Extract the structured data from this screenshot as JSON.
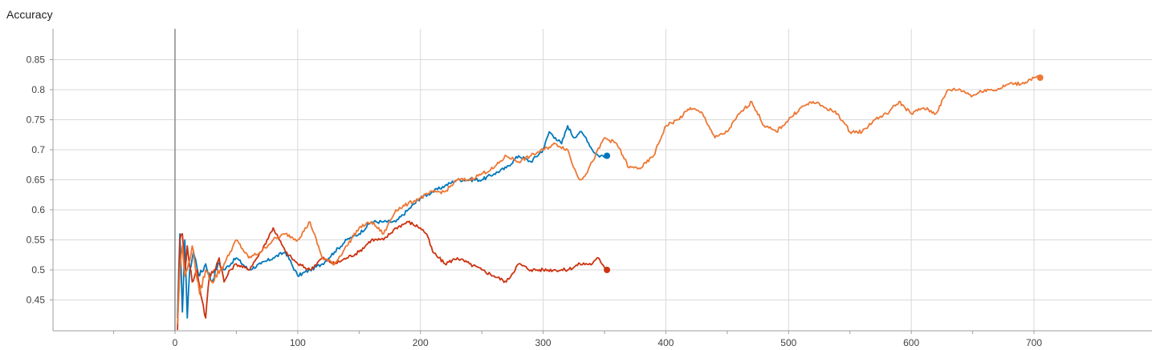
{
  "chart_data": {
    "type": "line",
    "title": "Accuracy",
    "xlabel": "",
    "ylabel": "",
    "xlim": [
      -100,
      790
    ],
    "ylim": [
      0.4,
      0.9
    ],
    "x_ticks": [
      0,
      100,
      200,
      300,
      400,
      500,
      600,
      700
    ],
    "x_tick_labels": [
      "0",
      "100",
      "200",
      "300",
      "400",
      "500",
      "600",
      "700"
    ],
    "y_ticks": [
      0.45,
      0.5,
      0.55,
      0.6,
      0.65,
      0.7,
      0.75,
      0.8,
      0.85
    ],
    "y_tick_labels": [
      "0.45",
      "0.5",
      "0.55",
      "0.6",
      "0.65",
      "0.7",
      "0.75",
      "0.8",
      "0.85"
    ],
    "grid": true,
    "legend": "none",
    "series": [
      {
        "color": "#0077bb",
        "x": [
          2,
          4,
          6,
          8,
          10,
          12,
          15,
          20,
          25,
          30,
          35,
          40,
          50,
          60,
          70,
          80,
          90,
          100,
          110,
          120,
          130,
          140,
          150,
          160,
          170,
          180,
          190,
          200,
          210,
          220,
          230,
          240,
          250,
          260,
          270,
          280,
          290,
          300,
          305,
          310,
          315,
          320,
          325,
          330,
          335,
          340,
          345,
          352
        ],
        "y": [
          0.42,
          0.56,
          0.43,
          0.55,
          0.42,
          0.5,
          0.53,
          0.49,
          0.51,
          0.48,
          0.51,
          0.5,
          0.52,
          0.5,
          0.51,
          0.52,
          0.53,
          0.49,
          0.5,
          0.51,
          0.53,
          0.55,
          0.56,
          0.58,
          0.58,
          0.58,
          0.6,
          0.62,
          0.63,
          0.64,
          0.65,
          0.65,
          0.65,
          0.66,
          0.67,
          0.69,
          0.68,
          0.7,
          0.73,
          0.72,
          0.71,
          0.74,
          0.72,
          0.73,
          0.72,
          0.7,
          0.69,
          0.69
        ]
      },
      {
        "color": "#cc3311",
        "x": [
          2,
          4,
          6,
          8,
          10,
          14,
          18,
          22,
          25,
          28,
          32,
          36,
          40,
          45,
          50,
          60,
          70,
          80,
          85,
          90,
          95,
          100,
          110,
          120,
          130,
          140,
          150,
          160,
          170,
          180,
          190,
          200,
          205,
          210,
          215,
          220,
          230,
          240,
          250,
          260,
          270,
          280,
          290,
          300,
          310,
          320,
          330,
          340,
          345,
          352
        ],
        "y": [
          0.4,
          0.55,
          0.56,
          0.5,
          0.54,
          0.48,
          0.5,
          0.45,
          0.42,
          0.49,
          0.5,
          0.52,
          0.48,
          0.5,
          0.51,
          0.5,
          0.53,
          0.57,
          0.55,
          0.53,
          0.52,
          0.51,
          0.5,
          0.52,
          0.51,
          0.52,
          0.53,
          0.55,
          0.55,
          0.57,
          0.58,
          0.57,
          0.56,
          0.53,
          0.52,
          0.51,
          0.52,
          0.51,
          0.5,
          0.49,
          0.48,
          0.51,
          0.5,
          0.5,
          0.5,
          0.5,
          0.51,
          0.51,
          0.52,
          0.5
        ]
      },
      {
        "color": "#ee7733",
        "x": [
          2,
          4,
          6,
          8,
          10,
          14,
          20,
          25,
          30,
          40,
          50,
          60,
          70,
          80,
          90,
          100,
          110,
          120,
          130,
          140,
          150,
          160,
          170,
          180,
          190,
          200,
          210,
          220,
          230,
          240,
          250,
          260,
          270,
          280,
          290,
          300,
          310,
          320,
          325,
          330,
          335,
          340,
          350,
          360,
          370,
          380,
          390,
          400,
          410,
          420,
          430,
          440,
          450,
          460,
          470,
          480,
          490,
          500,
          510,
          520,
          530,
          540,
          550,
          560,
          570,
          580,
          590,
          600,
          610,
          620,
          630,
          640,
          650,
          660,
          670,
          680,
          690,
          700,
          705
        ],
        "y": [
          0.41,
          0.5,
          0.54,
          0.49,
          0.5,
          0.54,
          0.46,
          0.5,
          0.48,
          0.51,
          0.55,
          0.52,
          0.53,
          0.55,
          0.56,
          0.55,
          0.58,
          0.52,
          0.51,
          0.54,
          0.57,
          0.58,
          0.56,
          0.6,
          0.61,
          0.62,
          0.63,
          0.63,
          0.65,
          0.65,
          0.66,
          0.67,
          0.69,
          0.68,
          0.69,
          0.7,
          0.71,
          0.7,
          0.67,
          0.65,
          0.66,
          0.68,
          0.72,
          0.71,
          0.67,
          0.67,
          0.69,
          0.74,
          0.75,
          0.77,
          0.76,
          0.72,
          0.73,
          0.76,
          0.78,
          0.74,
          0.73,
          0.75,
          0.77,
          0.78,
          0.77,
          0.76,
          0.73,
          0.73,
          0.75,
          0.76,
          0.78,
          0.76,
          0.77,
          0.76,
          0.8,
          0.8,
          0.79,
          0.8,
          0.8,
          0.81,
          0.81,
          0.82,
          0.82
        ]
      }
    ]
  }
}
